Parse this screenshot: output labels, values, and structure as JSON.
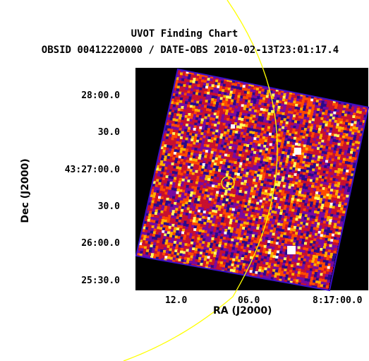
{
  "title": "UVOT Finding Chart",
  "subtitle": "OBSID 00412220000 / DATE-OBS 2010-02-13T23:01:17.4",
  "xlabel": "RA (J2000)",
  "ylabel": "Dec (J2000)",
  "x_ticks": [
    "12.0",
    "06.0",
    "8:17:00.0"
  ],
  "y_ticks": [
    "28:00.0",
    "30.0",
    "43:27:00.0",
    "30.0",
    "26:00.0",
    "25:30.0"
  ],
  "colors": {
    "background_frame": "#000000",
    "image_border": "#3a10c8",
    "palette": [
      "#2a0a8a",
      "#7a0aa0",
      "#c81030",
      "#ff4a00",
      "#ffb000",
      "#ffff60",
      "#ffffff"
    ],
    "overlay": "#ffff00"
  },
  "overlays": [
    "source-circle",
    "error-arc"
  ]
}
